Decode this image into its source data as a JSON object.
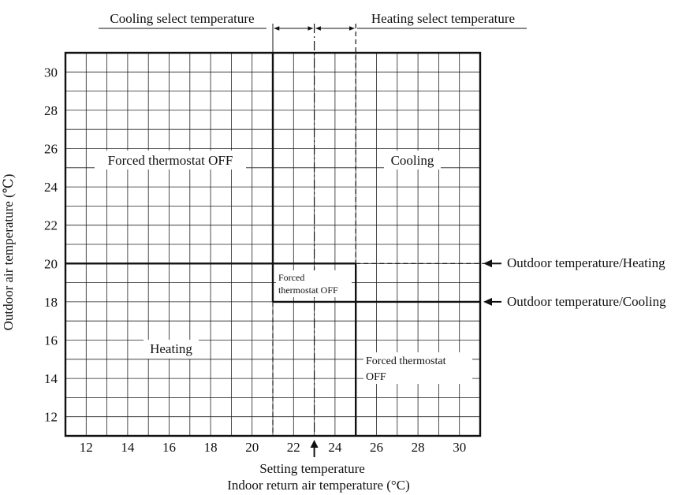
{
  "diagram": {
    "top_labels": {
      "cooling_select": "Cooling select temperature",
      "heating_select": "Heating select temperature"
    },
    "y_axis": {
      "label": "Outdoor air temperature (℃)",
      "ticks": [
        12,
        14,
        16,
        18,
        20,
        22,
        24,
        26,
        28,
        30
      ],
      "range": [
        11,
        31
      ]
    },
    "x_axis": {
      "label": "Indoor return air temperature (°C)",
      "ticks": [
        12,
        14,
        16,
        18,
        20,
        22,
        24,
        26,
        28,
        30
      ],
      "range": [
        11,
        31
      ]
    },
    "setting_temperature": {
      "label": "Setting temperature",
      "value": 23
    },
    "cooling_select_boundary": 21,
    "heating_select_boundary": 25,
    "outdoor_heating_threshold": 20,
    "outdoor_cooling_threshold": 18,
    "regions": {
      "forced_off_top_left": "Forced thermostat OFF",
      "cooling": "Cooling",
      "forced_off_center_line1": "Forced",
      "forced_off_center_line2": "thermostat OFF",
      "heating": "Heating",
      "forced_off_bottom_right_line1": "Forced thermostat",
      "forced_off_bottom_right_line2": "OFF"
    },
    "right_callouts": {
      "heating": "Outdoor temperature/Heating",
      "cooling": "Outdoor temperature/Cooling"
    }
  }
}
